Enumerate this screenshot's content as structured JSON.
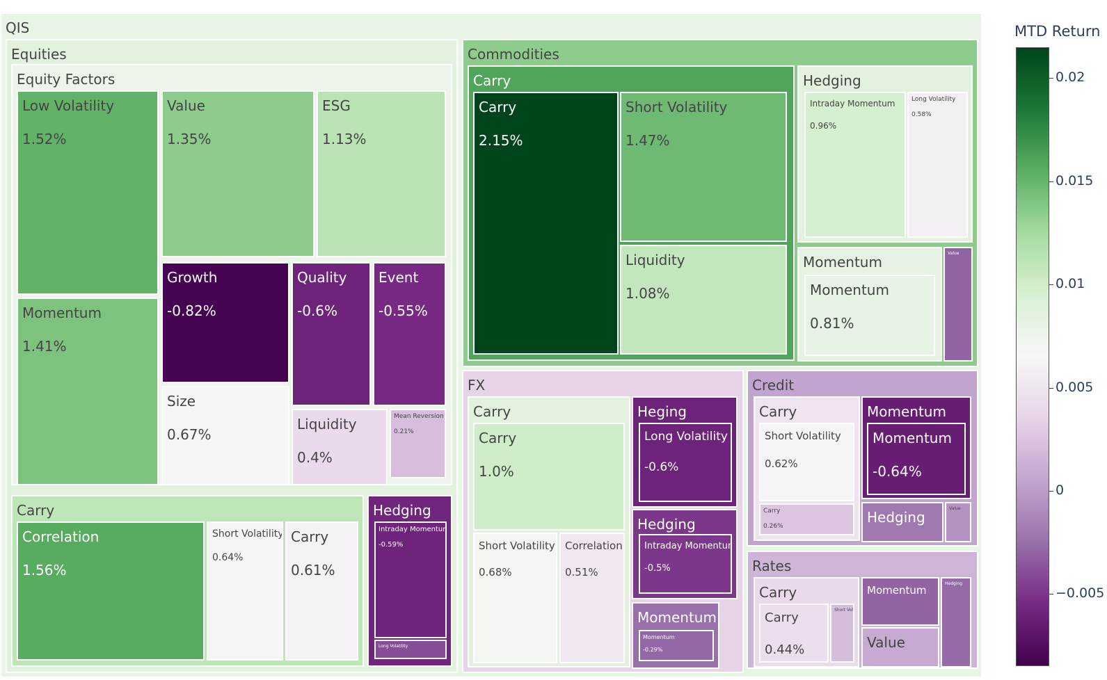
{
  "chart_data": {
    "type": "treemap",
    "colorscale": "PRGn",
    "cmin": -0.0085,
    "cmax": 0.0215,
    "colorbar": {
      "title": "MTD Return",
      "ticks": [
        {
          "v": 0.02,
          "label": "0.02"
        },
        {
          "v": 0.015,
          "label": "0.015"
        },
        {
          "v": 0.01,
          "label": "0.01"
        },
        {
          "v": 0.005,
          "label": "0.005"
        },
        {
          "v": 0,
          "label": "0"
        },
        {
          "v": -0.005,
          "label": "−0.005"
        }
      ]
    },
    "nodes": [
      {
        "id": "qis",
        "label": "QIS",
        "color": 0.008
      },
      {
        "id": "equities",
        "label": "Equities",
        "color": 0.0085
      },
      {
        "id": "eq-factors",
        "label": "Equity Factors",
        "color": 0.0075
      },
      {
        "id": "low-vol",
        "label": "Low Volatility",
        "value_text": "1.52%",
        "color": 0.0152
      },
      {
        "id": "value",
        "label": "Value",
        "value_text": "1.35%",
        "color": 0.0135
      },
      {
        "id": "esg",
        "label": "ESG",
        "value_text": "1.13%",
        "color": 0.0113
      },
      {
        "id": "momentum-eq",
        "label": "Momentum",
        "value_text": "1.41%",
        "color": 0.0141
      },
      {
        "id": "growth",
        "label": "Growth",
        "value_text": "-0.82%",
        "color": -0.0082
      },
      {
        "id": "quality",
        "label": "Quality",
        "value_text": "-0.6%",
        "color": -0.006
      },
      {
        "id": "event",
        "label": "Event",
        "value_text": "-0.55%",
        "color": -0.0055
      },
      {
        "id": "size",
        "label": "Size",
        "value_text": "0.67%",
        "color": 0.0067
      },
      {
        "id": "liquidity-eq",
        "label": "Liquidity",
        "value_text": "0.4%",
        "color": 0.004
      },
      {
        "id": "mean-rev",
        "label": "Mean Reversion",
        "value_text": "0.21%",
        "color": 0.0021
      },
      {
        "id": "eq-carry",
        "label": "Carry",
        "color": 0.011
      },
      {
        "id": "correlation-eq",
        "label": "Correlation",
        "value_text": "1.56%",
        "color": 0.0156
      },
      {
        "id": "short-vol-eq",
        "label": "Short Volatility",
        "value_text": "0.64%",
        "color": 0.0064
      },
      {
        "id": "carry-eq",
        "label": "Carry",
        "value_text": "0.61%",
        "color": 0.0061
      },
      {
        "id": "eq-hedging",
        "label": "Hedging",
        "color": -0.0058
      },
      {
        "id": "intraday-eq",
        "label": "Intraday Momentum",
        "value_text": "-0.59%",
        "color": -0.0059
      },
      {
        "id": "eq-hedging-small",
        "label": "Long Volatility",
        "color": -0.004
      },
      {
        "id": "commodities",
        "label": "Commodities",
        "color": 0.0135
      },
      {
        "id": "com-carry",
        "label": "Carry",
        "color": 0.016
      },
      {
        "id": "carry-com",
        "label": "Carry",
        "value_text": "2.15%",
        "color": 0.0215
      },
      {
        "id": "short-vol-com",
        "label": "Short Volatility",
        "value_text": "1.47%",
        "color": 0.0147
      },
      {
        "id": "liquidity-com",
        "label": "Liquidity",
        "value_text": "1.08%",
        "color": 0.0108
      },
      {
        "id": "com-hedging",
        "label": "Hedging",
        "color": 0.0085
      },
      {
        "id": "intraday-com",
        "label": "Intraday Momentum",
        "value_text": "0.96%",
        "color": 0.0096
      },
      {
        "id": "long-vol-com",
        "label": "Long Volatility",
        "value_text": "0.58%",
        "color": 0.0058
      },
      {
        "id": "com-momentum",
        "label": "Momentum",
        "color": 0.0082
      },
      {
        "id": "momentum-com",
        "label": "Momentum",
        "value_text": "0.81%",
        "color": 0.0081
      },
      {
        "id": "com-value",
        "label": "Value",
        "color": -0.003
      },
      {
        "id": "fx",
        "label": "FX",
        "color": 0.0035
      },
      {
        "id": "fx-carry",
        "label": "Carry",
        "color": 0.0085
      },
      {
        "id": "carry-fx",
        "label": "Carry",
        "value_text": "1.0%",
        "color": 0.01
      },
      {
        "id": "short-vol-fx",
        "label": "Short Volatility",
        "value_text": "0.68%",
        "color": 0.0068
      },
      {
        "id": "correlation-fx",
        "label": "Correlation",
        "value_text": "0.51%",
        "color": 0.0051
      },
      {
        "id": "fx-heging",
        "label": "Heging",
        "color": -0.006
      },
      {
        "id": "long-vol-fx",
        "label": "Long Volatility",
        "value_text": "-0.6%",
        "color": -0.006
      },
      {
        "id": "fx-hedging",
        "label": "Hedging",
        "color": -0.005
      },
      {
        "id": "intraday-fx",
        "label": "Intraday Momentum",
        "value_text": "-0.5%",
        "color": -0.005
      },
      {
        "id": "fx-momentum",
        "label": "Momentum",
        "color": -0.0025
      },
      {
        "id": "momentum-fx",
        "label": "Momentum",
        "value_text": "-0.29%",
        "color": -0.0029
      },
      {
        "id": "credit",
        "label": "Credit",
        "color": 0.0005
      },
      {
        "id": "credit-carry",
        "label": "Carry",
        "color": 0.0048
      },
      {
        "id": "short-vol-credit",
        "label": "Short Volatility",
        "value_text": "0.62%",
        "color": 0.0062
      },
      {
        "id": "carry-credit",
        "label": "Carry",
        "value_text": "0.26%",
        "color": 0.0026
      },
      {
        "id": "credit-momentum",
        "label": "Momentum",
        "color": -0.0064
      },
      {
        "id": "momentum-credit",
        "label": "Momentum",
        "value_text": "-0.64%",
        "color": -0.0064
      },
      {
        "id": "credit-hedging",
        "label": "Hedging",
        "color": -0.002
      },
      {
        "id": "credit-value",
        "label": "Value",
        "color": -0.0005
      },
      {
        "id": "rates",
        "label": "Rates",
        "color": 0.0015
      },
      {
        "id": "rates-carry",
        "label": "Carry",
        "color": 0.004
      },
      {
        "id": "carry-rates",
        "label": "Carry",
        "value_text": "0.44%",
        "color": 0.0044
      },
      {
        "id": "rates-carry-small",
        "label": "Short Volatility",
        "color": 0.002
      },
      {
        "id": "rates-momentum",
        "label": "Momentum",
        "color": -0.003
      },
      {
        "id": "rates-value",
        "label": "Value",
        "color": 0.0008
      },
      {
        "id": "rates-hedging",
        "label": "Hedging",
        "color": -0.0028
      }
    ]
  }
}
